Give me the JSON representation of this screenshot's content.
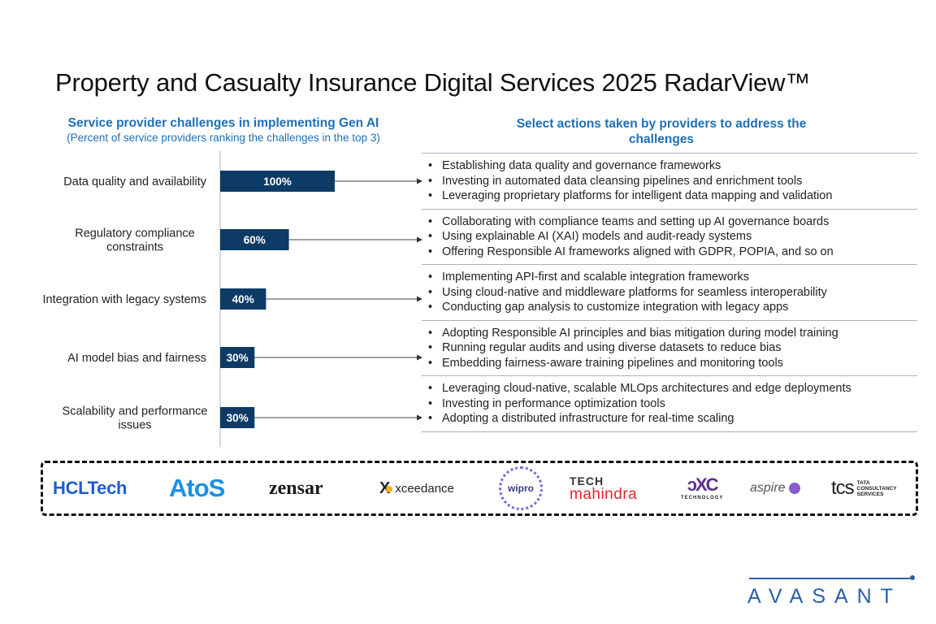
{
  "title": "Property and Casualty Insurance Digital Services 2025 RadarView™",
  "left_heading": {
    "title": "Service provider challenges in implementing Gen AI",
    "subtitle": "(Percent of service providers ranking the challenges in the top 3)"
  },
  "right_heading": {
    "line1": "Select actions taken by providers to address the",
    "line2": "challenges"
  },
  "chart_data": {
    "type": "bar",
    "orientation": "horizontal",
    "title": "Service provider challenges in implementing Gen AI",
    "subtitle": "(Percent of service providers ranking the challenges in the top 3)",
    "xlabel": "",
    "ylabel": "",
    "xlim": [
      0,
      100
    ],
    "grid": false,
    "categories": [
      [
        "Data quality and availability"
      ],
      [
        "Regulatory compliance",
        "constraints"
      ],
      [
        "Integration with legacy systems"
      ],
      [
        "AI model bias and fairness"
      ],
      [
        "Scalability and performance",
        "issues"
      ]
    ],
    "values": [
      100,
      60,
      40,
      30,
      30
    ],
    "data_labels": [
      "100%",
      "60%",
      "40%",
      "30%",
      "30%"
    ],
    "bar_color": "#0e3a66"
  },
  "actions": [
    {
      "challenge": "Data quality and availability",
      "items": [
        "Establishing data quality and governance frameworks",
        "Investing in automated data cleansing pipelines and enrichment tools",
        "Leveraging proprietary platforms for intelligent data mapping and validation"
      ]
    },
    {
      "challenge": "Regulatory compliance constraints",
      "items": [
        "Collaborating with compliance teams and setting up AI governance boards",
        "Using explainable AI (XAI) models and audit-ready systems",
        "Offering Responsible AI frameworks aligned with GDPR, POPIA, and so on"
      ]
    },
    {
      "challenge": "Integration with legacy systems",
      "items": [
        "Implementing API-first and scalable integration frameworks",
        "Using cloud-native and middleware platforms for seamless interoperability",
        "Conducting gap analysis to customize integration with legacy apps"
      ]
    },
    {
      "challenge": "AI model bias and fairness",
      "items": [
        "Adopting Responsible AI principles and bias mitigation during model training",
        "Running regular audits and using diverse datasets to reduce bias",
        "Embedding fairness-aware training pipelines and monitoring tools"
      ]
    },
    {
      "challenge": "Scalability and performance issues",
      "items": [
        "Leveraging cloud-native, scalable MLOps architectures and edge deployments",
        "Investing in performance optimization tools",
        "Adopting a distributed infrastructure for real-time scaling"
      ]
    }
  ],
  "bullet": "•",
  "logos": {
    "hcltech": "HCLTech",
    "atos": "AtoS",
    "zensar": "zensar",
    "xceedance_mark": "X",
    "xceedance": "xceedance",
    "wipro": "wipro",
    "techm_top": "TECH",
    "techm_bottom": "mahindra",
    "dxc_mark": "ↄXC",
    "dxc_sub": "TECHNOLOGY",
    "aspire": "aspire",
    "tcs_mark": "tcs",
    "tcs_l1": "TATA",
    "tcs_l2": "CONSULTANCY",
    "tcs_l3": "SERVICES"
  },
  "brand": {
    "name": "AVASANT",
    "color": "#2860a8"
  }
}
